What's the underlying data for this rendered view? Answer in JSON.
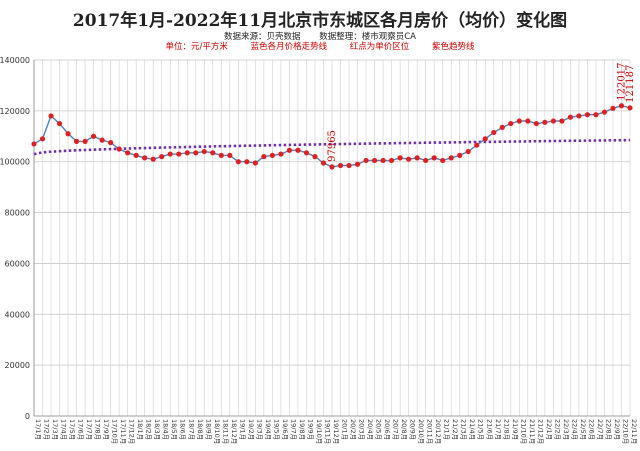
{
  "chart_data": {
    "type": "line",
    "title": "2017年1月-2022年11月北京市东城区各月房价（均价）变化图",
    "subtitle_source": "数据来源：贝壳数据",
    "subtitle_compiler": "数据整理：楼市观察员CA",
    "legend_unit": "单位：元/平方米",
    "legend_blue": "蓝色各月价格走势线",
    "legend_red": "红点为单价区位",
    "legend_purple": "紫色趋势线",
    "ylim": [
      0,
      140000
    ],
    "yticks": [
      0,
      20000,
      40000,
      60000,
      80000,
      100000,
      120000,
      140000
    ],
    "grid": true,
    "colors": {
      "line": "#4f81bd",
      "point": "#e02020",
      "trend": "#7030a0"
    },
    "x": [
      "17/1月",
      "17/2月",
      "17/3月",
      "17/4月",
      "17/5月",
      "17/6月",
      "17/7月",
      "17/8月",
      "17/9月",
      "17/10月",
      "17/11月",
      "17/12月",
      "18/1月",
      "18/2月",
      "18/3月",
      "18/4月",
      "18/5月",
      "18/6月",
      "18/7月",
      "18/8月",
      "18/9月",
      "18/10月",
      "18/11月",
      "18/12月",
      "19/1月",
      "19/2月",
      "19/3月",
      "19/4月",
      "19/5月",
      "19/6月",
      "19/7月",
      "19/8月",
      "19/9月",
      "19/10月",
      "19/11月",
      "19/12月",
      "20/1月",
      "20/2月",
      "20/3月",
      "20/4月",
      "20/5月",
      "20/6月",
      "20/7月",
      "20/8月",
      "20/9月",
      "20/10月",
      "20/11月",
      "20/12月",
      "21/1月",
      "21/2月",
      "21/3月",
      "21/4月",
      "21/5月",
      "21/6月",
      "21/7月",
      "21/8月",
      "21/9月",
      "21/10月",
      "21/11月",
      "21/12月",
      "22/1月",
      "22/2月",
      "22/3月",
      "22/4月",
      "22/5月",
      "22/6月",
      "22/7月",
      "22/8月",
      "22/9月",
      "22/10月",
      "22/11月"
    ],
    "values": [
      107000,
      109000,
      118000,
      115000,
      111000,
      108000,
      108000,
      110000,
      108500,
      107500,
      105000,
      103500,
      102500,
      101500,
      101000,
      102000,
      103000,
      103000,
      103500,
      103500,
      104000,
      103500,
      102500,
      102500,
      100000,
      100000,
      99500,
      102000,
      102500,
      103000,
      104500,
      104500,
      103500,
      102000,
      99500,
      97965,
      98500,
      98500,
      99000,
      100500,
      100500,
      100500,
      100500,
      101500,
      101000,
      101500,
      100500,
      101500,
      100500,
      101500,
      102500,
      104000,
      106500,
      109000,
      111500,
      113500,
      115000,
      116000,
      116000,
      115000,
      115500,
      116000,
      116000,
      117500,
      118000,
      118500,
      118500,
      119500,
      121000,
      122017,
      121187
    ],
    "trend": {
      "start": 103000,
      "end": 108500
    },
    "annotations": [
      {
        "index": 35,
        "label": "97965"
      },
      {
        "index": 69,
        "label": "122017"
      },
      {
        "index": 70,
        "label": "121187"
      }
    ]
  }
}
